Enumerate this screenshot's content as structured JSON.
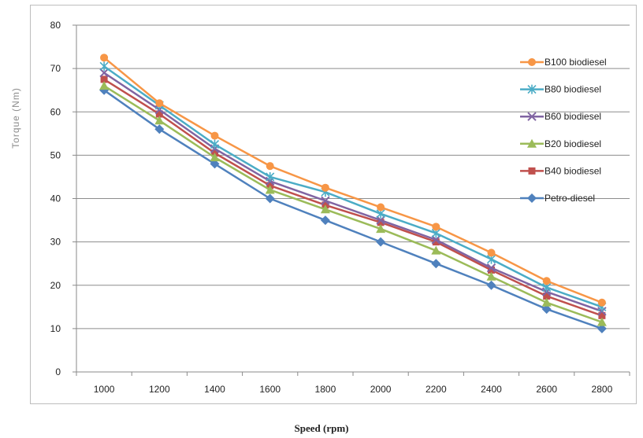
{
  "chart_data": {
    "type": "line",
    "title": "",
    "xlabel": "Speed (rpm)",
    "ylabel": "Torque (Nm)",
    "x": [
      1000,
      1200,
      1400,
      1600,
      1800,
      2000,
      2200,
      2400,
      2600,
      2800
    ],
    "ylim": [
      0,
      80
    ],
    "yticks": [
      0,
      10,
      20,
      30,
      40,
      50,
      60,
      70,
      80
    ],
    "grid": true,
    "legend_position": "right",
    "series": [
      {
        "name": "B100 biodiesel",
        "color": "#f79646",
        "marker": "circle",
        "values": [
          72.5,
          62,
          54.5,
          47.5,
          42.5,
          38,
          33.5,
          27.5,
          21,
          16
        ]
      },
      {
        "name": "B80 biodiesel",
        "color": "#4bacc6",
        "marker": "asterisk",
        "values": [
          70.5,
          61.5,
          52.5,
          45,
          41.5,
          36.5,
          32,
          26,
          19.5,
          15
        ]
      },
      {
        "name": "B60 biodiesel",
        "color": "#8064a2",
        "marker": "x",
        "values": [
          69,
          60.5,
          51.5,
          44,
          39.5,
          35,
          30.5,
          24,
          18.5,
          14
        ]
      },
      {
        "name": "B20 biodiesel",
        "color": "#9bbb59",
        "marker": "triangle",
        "values": [
          66,
          58,
          49.5,
          42,
          37.5,
          33,
          28,
          22,
          16,
          11.5
        ]
      },
      {
        "name": "B40 biodiesel",
        "color": "#c0504d",
        "marker": "square",
        "values": [
          67.5,
          59.5,
          50.5,
          43,
          38.5,
          34.5,
          30,
          23.5,
          17.5,
          13
        ]
      },
      {
        "name": "Petro-diesel",
        "color": "#4f81bd",
        "marker": "diamond",
        "values": [
          65,
          56,
          48,
          40,
          35,
          30,
          25,
          20,
          14.5,
          10
        ]
      }
    ]
  }
}
